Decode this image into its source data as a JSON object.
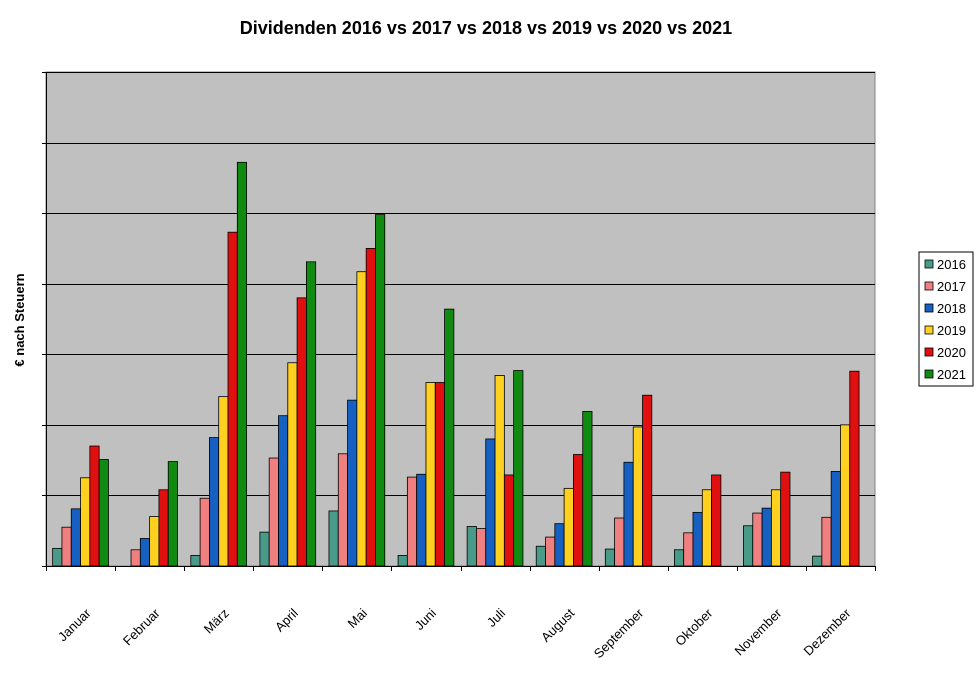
{
  "chart_data": {
    "type": "bar",
    "title": "Dividenden 2016 vs 2017 vs 2018 vs 2019 vs 2020 vs 2021",
    "ylabel": "€ nach Steuern",
    "xlabel": "",
    "ylim": [
      0,
      7
    ],
    "grid": true,
    "legend_position": "right",
    "plot_background": "#c0c0c0",
    "categories": [
      "Januar",
      "Februar",
      "März",
      "April",
      "Mai",
      "Juni",
      "Juli",
      "August",
      "September",
      "Oktober",
      "November",
      "Dezember"
    ],
    "series": [
      {
        "name": "2016",
        "color": "#4a9a8a",
        "values": [
          0.25,
          0.0,
          0.15,
          0.48,
          0.78,
          0.15,
          0.56,
          0.28,
          0.24,
          0.23,
          0.57,
          0.14
        ]
      },
      {
        "name": "2017",
        "color": "#f08080",
        "values": [
          0.55,
          0.23,
          0.96,
          1.53,
          1.59,
          1.26,
          0.53,
          0.41,
          0.68,
          0.47,
          0.75,
          0.69
        ]
      },
      {
        "name": "2018",
        "color": "#1560c0",
        "values": [
          0.81,
          0.39,
          1.82,
          2.13,
          2.35,
          1.3,
          1.8,
          0.6,
          1.47,
          0.76,
          0.82,
          1.34
        ]
      },
      {
        "name": "2019",
        "color": "#ffd020",
        "values": [
          1.25,
          0.7,
          2.4,
          2.88,
          4.17,
          2.6,
          2.7,
          1.1,
          1.97,
          1.08,
          1.08,
          2.0
        ]
      },
      {
        "name": "2020",
        "color": "#e01010",
        "values": [
          1.7,
          1.08,
          4.73,
          3.8,
          4.5,
          2.6,
          1.29,
          1.58,
          2.42,
          1.29,
          1.33,
          2.76
        ]
      },
      {
        "name": "2021",
        "color": "#108a10",
        "values": [
          1.51,
          1.48,
          5.72,
          4.31,
          4.98,
          3.64,
          2.77,
          2.19,
          null,
          null,
          null,
          null
        ]
      }
    ]
  }
}
